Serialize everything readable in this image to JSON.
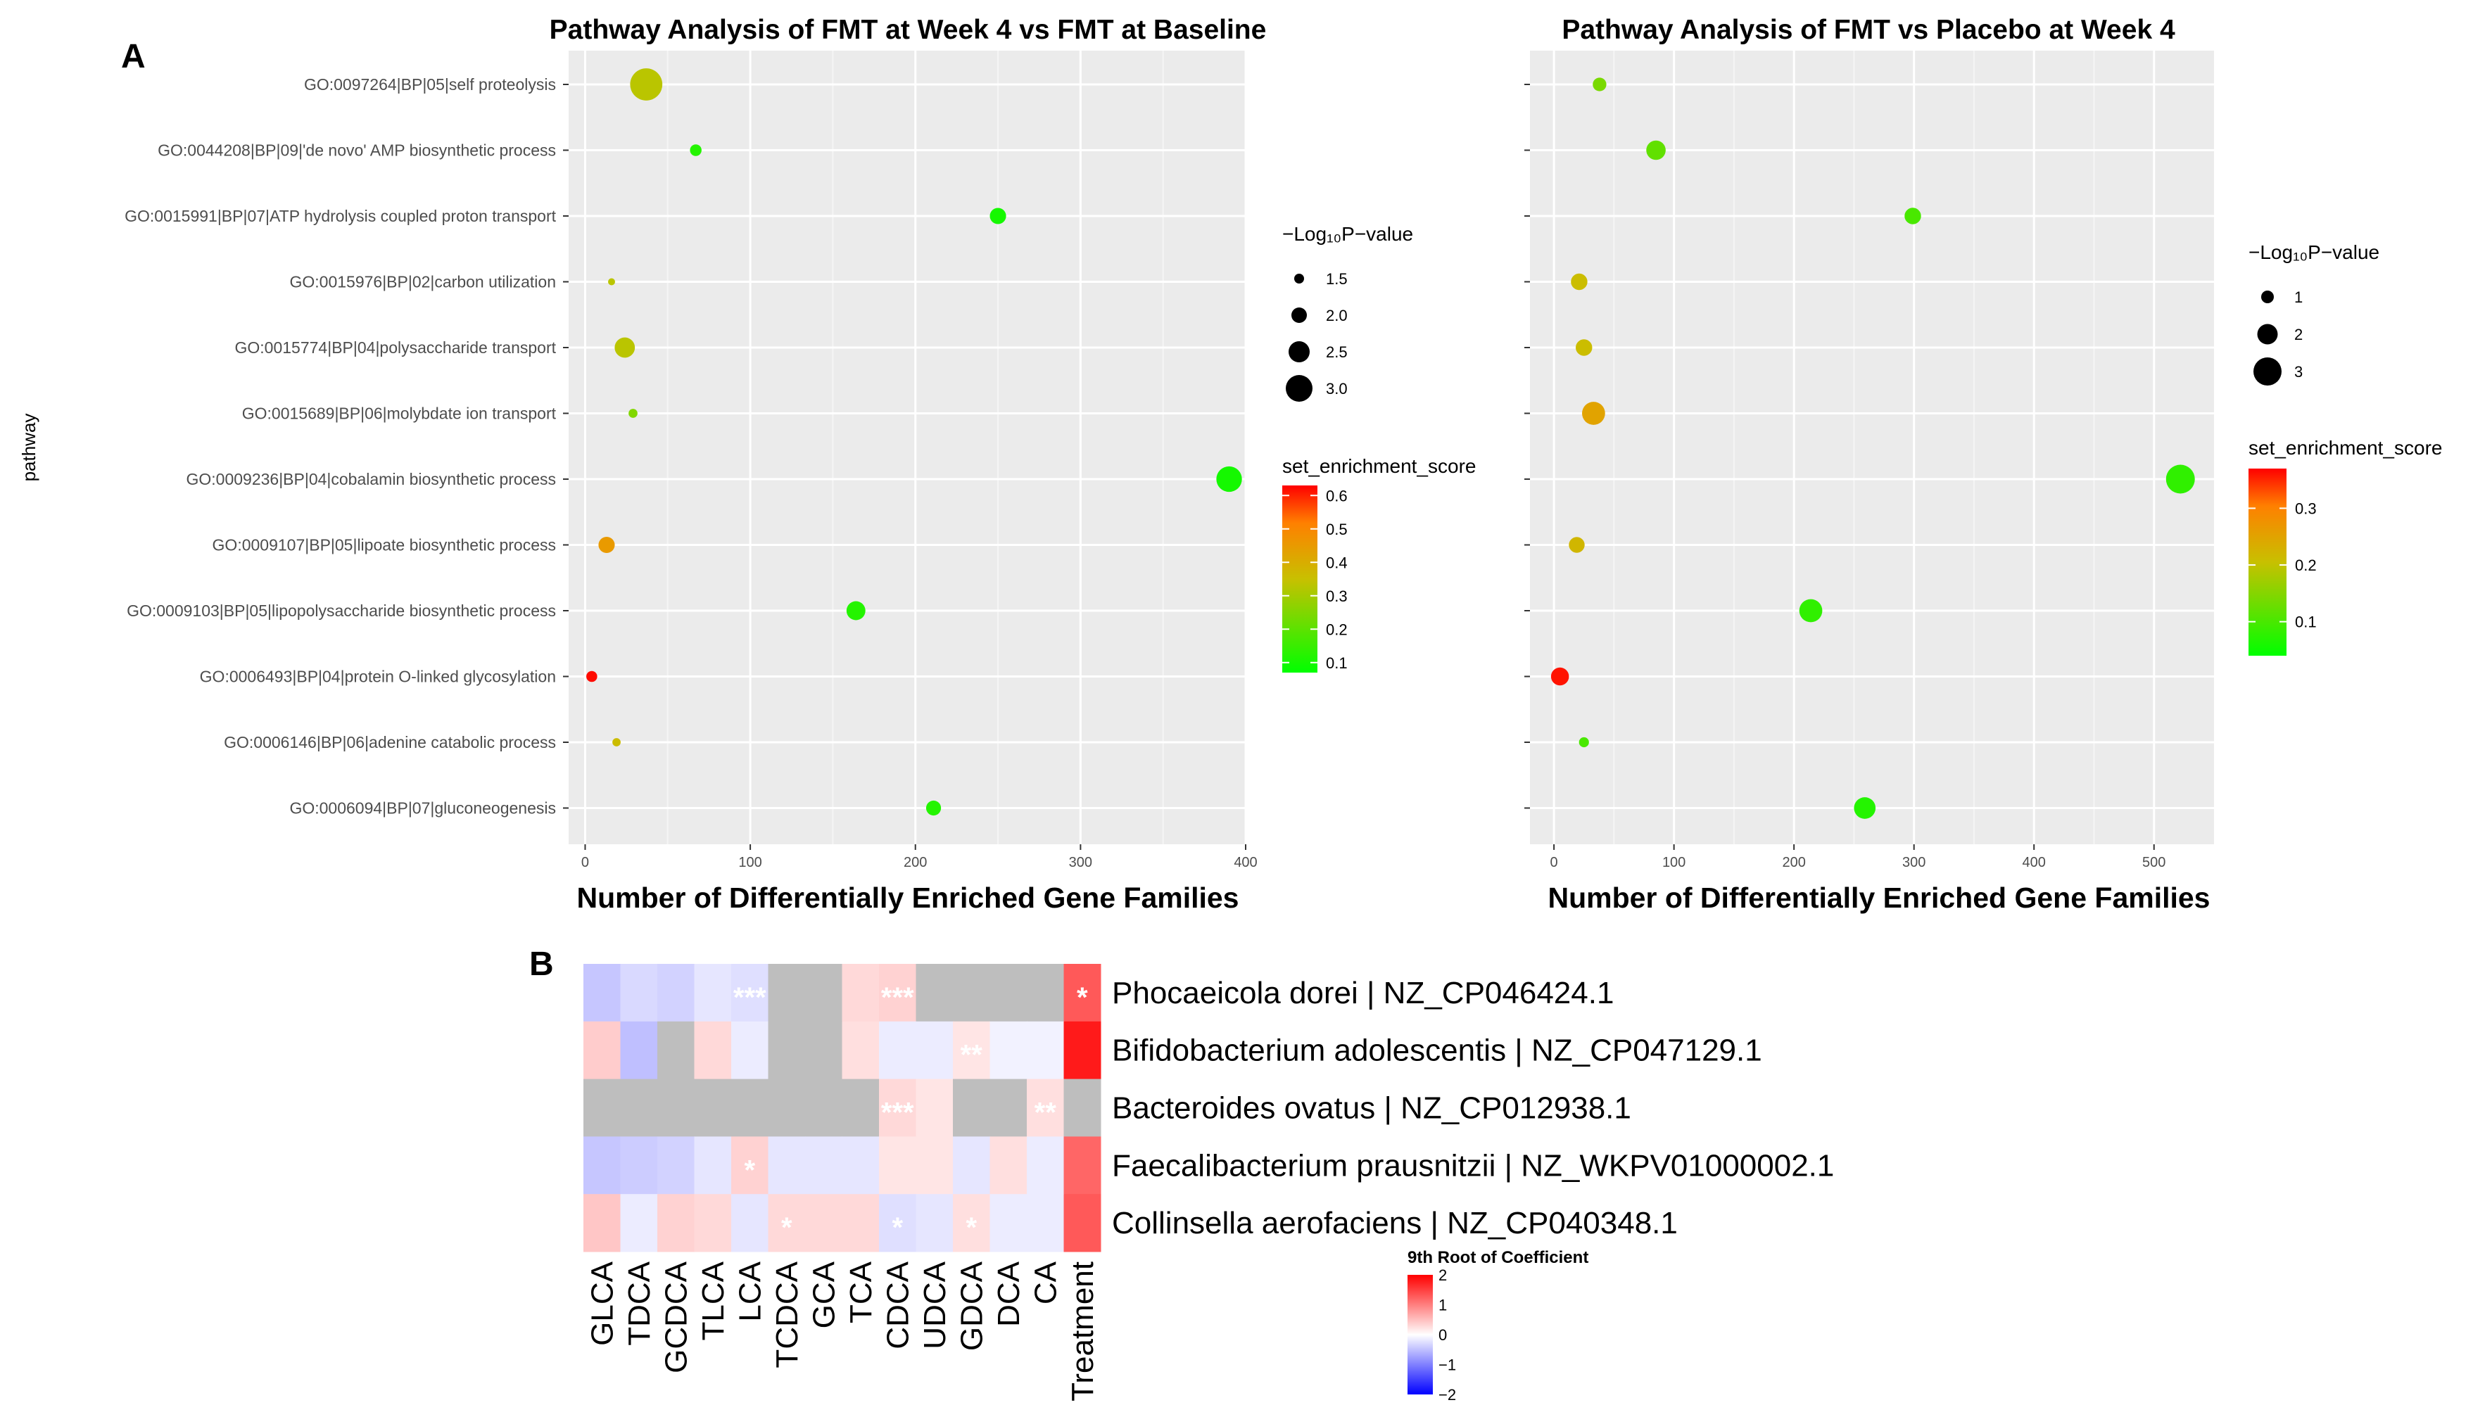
{
  "panel_labels": {
    "a": "A",
    "b": "B"
  },
  "chart_data": [
    {
      "type": "scatter",
      "title": "Pathway Analysis of FMT at Week 4 vs FMT at Baseline",
      "xlabel": "Number of Differentially Enriched Gene Families",
      "ylabel": "pathway",
      "xlim": [
        -10,
        400
      ],
      "xticks": [
        0,
        100,
        200,
        300,
        400
      ],
      "grid": true,
      "size_legend": {
        "title": "−Log₁₀P−value",
        "values": [
          1.5,
          2.0,
          2.5,
          3.0
        ],
        "labels": [
          "1.5",
          "2.0",
          "2.5",
          "3.0"
        ],
        "range": [
          1.5,
          3.0
        ]
      },
      "color_legend": {
        "title": "set_enrichment_score",
        "labels": [
          "0.6",
          "0.5",
          "0.4",
          "0.3",
          "0.2",
          "0.1"
        ],
        "values": [
          0.6,
          0.5,
          0.4,
          0.3,
          0.2,
          0.1
        ],
        "range": [
          0.07,
          0.63
        ]
      },
      "pathways": [
        "GO:0097264|BP|05|self proteolysis",
        "GO:0044208|BP|09|'de novo' AMP biosynthetic process",
        "GO:0015991|BP|07|ATP hydrolysis coupled proton transport",
        "GO:0015976|BP|02|carbon utilization",
        "GO:0015774|BP|04|polysaccharide transport",
        "GO:0015689|BP|06|molybdate ion transport",
        "GO:0009236|BP|04|cobalamin biosynthetic process",
        "GO:0009107|BP|05|lipoate biosynthetic process",
        "GO:0009103|BP|05|lipopolysaccharide biosynthetic process",
        "GO:0006493|BP|04|protein O-linked glycosylation",
        "GO:0006146|BP|06|adenine catabolic process",
        "GO:0006094|BP|07|gluconeogenesis"
      ],
      "points": [
        {
          "x": 37,
          "p": 3.2,
          "score": 0.33
        },
        {
          "x": 67,
          "p": 1.65,
          "score": 0.12
        },
        {
          "x": 250,
          "p": 2.0,
          "score": 0.1
        },
        {
          "x": 16,
          "p": 1.2,
          "score": 0.33
        },
        {
          "x": 24,
          "p": 2.3,
          "score": 0.33
        },
        {
          "x": 29,
          "p": 1.45,
          "score": 0.25
        },
        {
          "x": 390,
          "p": 2.7,
          "score": 0.1
        },
        {
          "x": 13,
          "p": 2.0,
          "score": 0.45
        },
        {
          "x": 164,
          "p": 2.2,
          "score": 0.12
        },
        {
          "x": 4,
          "p": 1.6,
          "score": 0.62
        },
        {
          "x": 19,
          "p": 1.4,
          "score": 0.36
        },
        {
          "x": 211,
          "p": 1.9,
          "score": 0.12
        }
      ]
    },
    {
      "type": "scatter",
      "title": "Pathway Analysis of FMT vs Placebo at Week 4",
      "xlabel": "Number of Differentially Enriched Gene Families",
      "xlim": [
        -20,
        550
      ],
      "xticks": [
        0,
        100,
        200,
        300,
        400,
        500
      ],
      "grid": true,
      "size_legend": {
        "title": "−Log₁₀P−value",
        "values": [
          1,
          2,
          3
        ],
        "labels": [
          "1",
          "2",
          "3"
        ],
        "range": [
          0.5,
          3.5
        ]
      },
      "color_legend": {
        "title": "set_enrichment_score",
        "labels": [
          "0.3",
          "0.2",
          "0.1"
        ],
        "values": [
          0.3,
          0.2,
          0.1
        ],
        "range": [
          0.04,
          0.37
        ]
      },
      "points": [
        {
          "x": 38,
          "p": 1.3,
          "score": 0.14
        },
        {
          "x": 85,
          "p": 2.1,
          "score": 0.12
        },
        {
          "x": 299,
          "p": 1.7,
          "score": 0.1
        },
        {
          "x": 21,
          "p": 1.7,
          "score": 0.21
        },
        {
          "x": 25,
          "p": 1.7,
          "score": 0.21
        },
        {
          "x": 33,
          "p": 2.6,
          "score": 0.25
        },
        {
          "x": 522,
          "p": 3.4,
          "score": 0.08
        },
        {
          "x": 19,
          "p": 1.6,
          "score": 0.22
        },
        {
          "x": 214,
          "p": 2.6,
          "score": 0.08
        },
        {
          "x": 5,
          "p": 1.9,
          "score": 0.36
        },
        {
          "x": 25,
          "p": 0.8,
          "score": 0.1
        },
        {
          "x": 259,
          "p": 2.4,
          "score": 0.07
        }
      ]
    },
    {
      "type": "heatmap",
      "columns": [
        "GLCA",
        "TDCA",
        "GCDCA",
        "TLCA",
        "LCA",
        "TCDCA",
        "GCA",
        "TCA",
        "CDCA",
        "UDCA",
        "GDCA",
        "DCA",
        "CA",
        "Treatment"
      ],
      "rows": [
        "Phocaeicola dorei | NZ_CP046424.1",
        "Bifidobacterium adolescentis | NZ_CP047129.1",
        "Bacteroides ovatus | NZ_CP012938.1",
        "Faecalibacterium prausnitzii | NZ_WKPV01000002.1",
        "Collinsella aerofaciens | NZ_CP040348.1"
      ],
      "values": [
        [
          -0.45,
          -0.3,
          -0.35,
          -0.2,
          -0.25,
          null,
          null,
          0.3,
          0.35,
          null,
          null,
          null,
          null,
          1.3
        ],
        [
          0.4,
          -0.5,
          null,
          0.3,
          -0.15,
          null,
          null,
          0.25,
          -0.15,
          -0.15,
          0.2,
          -0.1,
          -0.1,
          1.8
        ],
        [
          null,
          null,
          null,
          null,
          null,
          null,
          null,
          null,
          0.3,
          0.2,
          null,
          null,
          0.25,
          null
        ],
        [
          -0.45,
          -0.4,
          -0.35,
          -0.2,
          0.35,
          -0.2,
          -0.2,
          -0.2,
          0.2,
          0.2,
          -0.2,
          0.25,
          -0.15,
          1.2
        ],
        [
          0.45,
          -0.15,
          0.35,
          0.3,
          -0.2,
          0.3,
          0.3,
          0.3,
          -0.25,
          -0.2,
          0.25,
          -0.15,
          -0.15,
          1.3
        ]
      ],
      "stars": [
        [
          "",
          "",
          "",
          "",
          "***",
          "",
          "",
          "",
          "***",
          "",
          "",
          "",
          "",
          "*"
        ],
        [
          "",
          "",
          "",
          "",
          "",
          "",
          "",
          "",
          "",
          "",
          "**",
          "",
          "",
          ""
        ],
        [
          "",
          "",
          "",
          "",
          "",
          "",
          "",
          "",
          "***",
          "",
          "",
          "",
          "**",
          ""
        ],
        [
          "",
          "",
          "",
          "",
          "*",
          "",
          "",
          "",
          "",
          "",
          "",
          "",
          "",
          ""
        ],
        [
          "",
          "",
          "",
          "",
          "",
          "*",
          "",
          "",
          "*",
          "",
          "*",
          "",
          "",
          ""
        ]
      ],
      "missing_color": "#bebebe",
      "legend": {
        "title": "9th Root of Coefficient",
        "labels": [
          "2",
          "1",
          "0",
          "−1",
          "−2"
        ],
        "values": [
          2,
          1,
          0,
          -1,
          -2
        ],
        "range": [
          -2,
          2
        ]
      }
    }
  ]
}
